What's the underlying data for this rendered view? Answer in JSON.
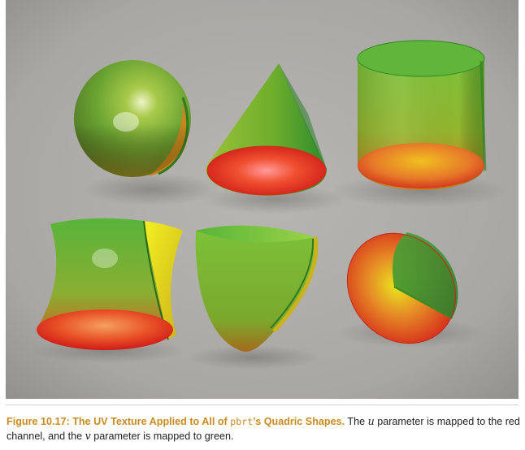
{
  "caption": {
    "label": "Figure 10.17:",
    "title_part1": "The UV Texture Applied to All of",
    "title_code": "pbrt",
    "title_part2": "’s Quadric Shapes.",
    "body_part1": "The",
    "var_u": "u",
    "body_part2": "parameter is mapped to the red channel, and the",
    "var_v": "v",
    "body_part3": "parameter is mapped to green."
  },
  "colors": {
    "background_gray": "#a9a7a4",
    "uv_red": "#e0281c",
    "uv_green": "#36a336",
    "uv_yellow": "#e9e61e",
    "caption_accent": "#c98a1e"
  },
  "shapes": [
    "sphere",
    "cone",
    "cylinder",
    "hyperboloid",
    "paraboloid",
    "disk"
  ]
}
